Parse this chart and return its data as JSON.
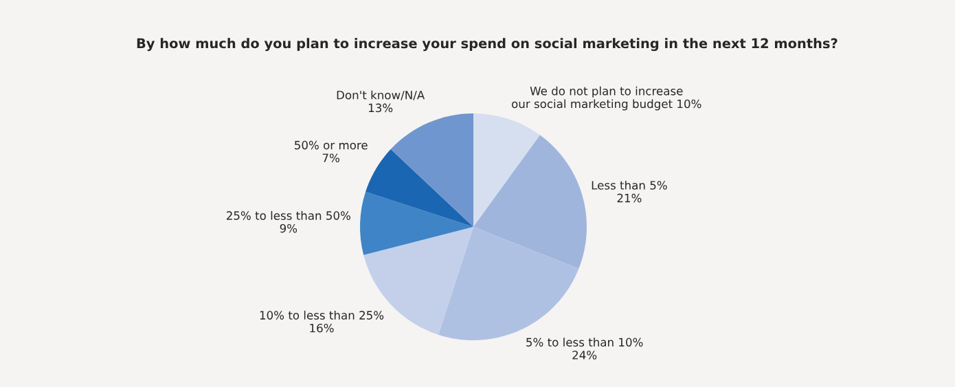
{
  "chart_data": {
    "type": "pie",
    "title": "By how much do you plan to increase your spend on social marketing in the next 12 months?",
    "categories": [
      "We do not plan to increase\nour social marketing budget",
      "Less than 5%",
      "5% to less than 10%",
      "10% to less than 25%",
      "25% to less than 50%",
      "50% or more",
      "Don't know/N/A"
    ],
    "values": [
      10,
      21,
      24,
      16,
      9,
      7,
      13
    ],
    "value_labels": [
      "10%",
      "21%",
      "24%",
      "16%",
      "9%",
      "7%",
      "13%"
    ],
    "colors": [
      "#d6dff0",
      "#9fb5dc",
      "#afc1e3",
      "#c4d0ea",
      "#3f84c6",
      "#1b66b2",
      "#6f96ce"
    ]
  }
}
